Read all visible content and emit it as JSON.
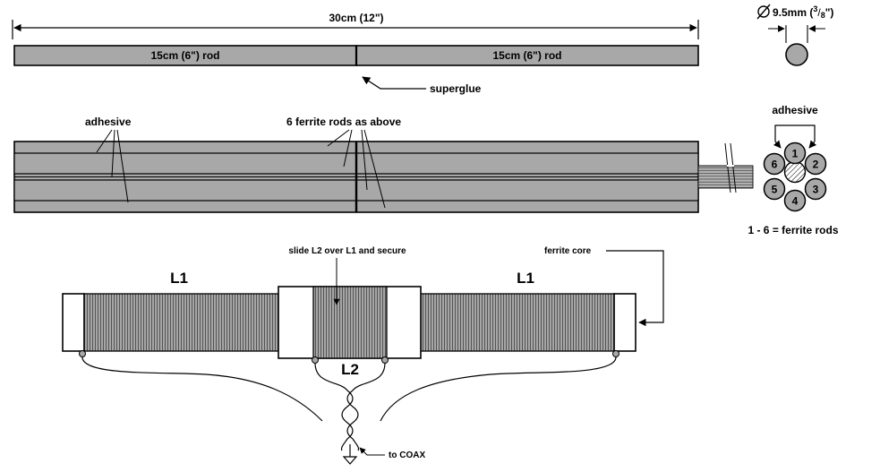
{
  "rod_diagram": {
    "total_length_label": "30cm (12\")",
    "rod_left_label": "15cm (6\") rod",
    "rod_right_label": "15cm (6\") rod",
    "joint_label": "superglue"
  },
  "diameter": {
    "value_label": "9.5mm (",
    "fraction_num": "3",
    "fraction_den": "8",
    "close": "\")"
  },
  "bundle": {
    "adhesive_label": "adhesive",
    "rods_label": "6 ferrite rods as above"
  },
  "cross_section": {
    "adhesive_label": "adhesive",
    "rod_numbers": [
      "1",
      "2",
      "3",
      "4",
      "5",
      "6"
    ],
    "legend": "1 - 6 = ferrite rods"
  },
  "coil": {
    "slide_note": "slide L2 over L1 and secure",
    "ferrite_core_label": "ferrite core",
    "l1_left": "L1",
    "l1_right": "L1",
    "l2": "L2",
    "coax_label": "to COAX"
  },
  "colors": {
    "rod_fill": "#a8a8a8",
    "winding_fill": "#9a9a9a",
    "line": "#000000",
    "background": "#ffffff"
  }
}
